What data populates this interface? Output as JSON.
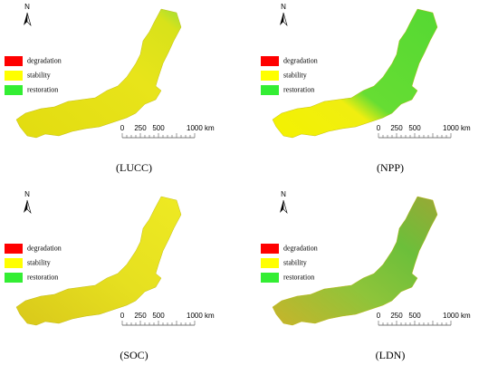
{
  "panels": [
    {
      "caption": "(LUCC)",
      "north": "N",
      "legend": [
        {
          "label": "degradation",
          "color": "#ff0000"
        },
        {
          "label": "stability",
          "color": "#ffff00"
        },
        {
          "label": "restoration",
          "color": "#33ee33"
        }
      ],
      "scale_labels": [
        "0",
        "250",
        "500",
        "1000 km"
      ]
    },
    {
      "caption": "(NPP)",
      "north": "N",
      "legend": [
        {
          "label": "degradation",
          "color": "#ff0000"
        },
        {
          "label": "stability",
          "color": "#ffff00"
        },
        {
          "label": "restoration",
          "color": "#33ee33"
        }
      ],
      "scale_labels": [
        "0",
        "250",
        "500",
        "1000 km"
      ]
    },
    {
      "caption": "(SOC)",
      "north": "N",
      "legend": [
        {
          "label": "degradation",
          "color": "#ff0000"
        },
        {
          "label": "stability",
          "color": "#ffff00"
        },
        {
          "label": "restoration",
          "color": "#33ee33"
        }
      ],
      "scale_labels": [
        "0",
        "250",
        "500",
        "1000 km"
      ]
    },
    {
      "caption": "(LDN)",
      "north": "N",
      "legend": [
        {
          "label": "degradation",
          "color": "#ff0000"
        },
        {
          "label": "stability",
          "color": "#ffff00"
        },
        {
          "label": "restoration",
          "color": "#33ee33"
        }
      ],
      "scale_labels": [
        "0",
        "250",
        "500",
        "1000 km"
      ]
    }
  ]
}
